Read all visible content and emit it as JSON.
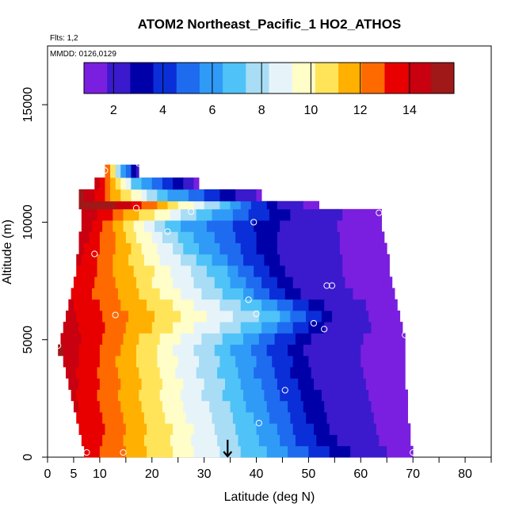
{
  "chart_data": {
    "type": "heatmap",
    "title": "ATOM2 Northeast_Pacific_1 HO2_ATHOS",
    "flights_label": "Flts: 1,2",
    "dates_label": "MMDD: 0126,0129",
    "xlabel": "Latitude (deg N)",
    "ylabel": "Altitude (m)",
    "xlim": [
      0,
      85
    ],
    "ylim": [
      0,
      17500
    ],
    "x_ticks": [
      0,
      5,
      10,
      20,
      30,
      40,
      50,
      60,
      70,
      80
    ],
    "y_ticks": [
      0,
      5000,
      10000,
      15000
    ],
    "grid": false,
    "colorbar": {
      "position": "top",
      "range": [
        0.8,
        15.8
      ],
      "ticks": [
        2,
        4,
        6,
        8,
        10,
        12,
        14
      ],
      "colors": [
        "#7A1FE0",
        "#3A1ACC",
        "#0000A8",
        "#0A2FD8",
        "#1E6BF0",
        "#2F9BF7",
        "#4FC3F7",
        "#A8DDF5",
        "#E6F4FA",
        "#FFFDC8",
        "#FFE45A",
        "#FFB000",
        "#FF6A00",
        "#E80000",
        "#C80010",
        "#A01818"
      ]
    },
    "marker_latitude": 34.5,
    "x_bin_width": 1,
    "layers": [
      {
        "y0": 0,
        "y1": 480,
        "lat_start": 7.0,
        "lat_end": 70.0,
        "peak_lat": 7.0,
        "peak_val": 13.6,
        "fade_lat": 40.0,
        "low_lat": 60.0
      },
      {
        "y0": 480,
        "y1": 960,
        "lat_start": 6.5,
        "lat_end": 69.5,
        "peak_lat": 6.5,
        "peak_val": 13.8,
        "fade_lat": 39.0,
        "low_lat": 57.0
      },
      {
        "y0": 960,
        "y1": 1440,
        "lat_start": 6.0,
        "lat_end": 69.5,
        "peak_lat": 6.0,
        "peak_val": 14.0,
        "fade_lat": 39.0,
        "low_lat": 56.0
      },
      {
        "y0": 1440,
        "y1": 1920,
        "lat_start": 5.5,
        "lat_end": 69.0,
        "peak_lat": 5.5,
        "peak_val": 14.0,
        "fade_lat": 38.0,
        "low_lat": 55.0
      },
      {
        "y0": 1920,
        "y1": 2400,
        "lat_start": 5.0,
        "lat_end": 69.0,
        "peak_lat": 5.0,
        "peak_val": 14.2,
        "fade_lat": 37.0,
        "low_lat": 55.0
      },
      {
        "y0": 2400,
        "y1": 2880,
        "lat_start": 4.5,
        "lat_end": 69.0,
        "peak_lat": 4.5,
        "peak_val": 14.2,
        "fade_lat": 36.0,
        "low_lat": 54.0
      },
      {
        "y0": 2880,
        "y1": 3360,
        "lat_start": 4.0,
        "lat_end": 68.5,
        "peak_lat": 4.0,
        "peak_val": 14.4,
        "fade_lat": 36.0,
        "low_lat": 53.0
      },
      {
        "y0": 3360,
        "y1": 3840,
        "lat_start": 3.5,
        "lat_end": 68.5,
        "peak_lat": 3.5,
        "peak_val": 14.4,
        "fade_lat": 35.0,
        "low_lat": 52.0
      },
      {
        "y0": 3840,
        "y1": 4320,
        "lat_start": 3.0,
        "lat_end": 68.5,
        "peak_lat": 3.0,
        "peak_val": 14.6,
        "fade_lat": 35.0,
        "low_lat": 52.0
      },
      {
        "y0": 4320,
        "y1": 4800,
        "lat_start": 2.0,
        "lat_end": 68.5,
        "peak_lat": 2.0,
        "peak_val": 15.0,
        "fade_lat": 34.0,
        "low_lat": 51.0
      },
      {
        "y0": 4800,
        "y1": 5280,
        "lat_start": 2.5,
        "lat_end": 68.5,
        "peak_lat": 2.5,
        "peak_val": 14.8,
        "fade_lat": 36.0,
        "low_lat": 52.0
      },
      {
        "y0": 5280,
        "y1": 5760,
        "lat_start": 3.0,
        "lat_end": 68.0,
        "peak_lat": 3.0,
        "peak_val": 14.6,
        "fade_lat": 40.0,
        "low_lat": 55.0
      },
      {
        "y0": 5760,
        "y1": 6240,
        "lat_start": 3.5,
        "lat_end": 67.5,
        "peak_lat": 3.5,
        "peak_val": 14.4,
        "fade_lat": 43.0,
        "low_lat": 56.0
      },
      {
        "y0": 6240,
        "y1": 6720,
        "lat_start": 4.0,
        "lat_end": 67.0,
        "peak_lat": 4.0,
        "peak_val": 14.2,
        "fade_lat": 40.0,
        "low_lat": 54.0
      },
      {
        "y0": 6720,
        "y1": 7200,
        "lat_start": 4.5,
        "lat_end": 66.5,
        "peak_lat": 4.5,
        "peak_val": 14.0,
        "fade_lat": 36.0,
        "low_lat": 50.0
      },
      {
        "y0": 7200,
        "y1": 7680,
        "lat_start": 5.0,
        "lat_end": 66.0,
        "peak_lat": 5.0,
        "peak_val": 14.0,
        "fade_lat": 34.0,
        "low_lat": 48.0
      },
      {
        "y0": 7680,
        "y1": 8160,
        "lat_start": 5.5,
        "lat_end": 65.5,
        "peak_lat": 5.5,
        "peak_val": 14.0,
        "fade_lat": 33.0,
        "low_lat": 47.0
      },
      {
        "y0": 8160,
        "y1": 8640,
        "lat_start": 5.5,
        "lat_end": 65.5,
        "peak_lat": 5.5,
        "peak_val": 14.2,
        "fade_lat": 30.0,
        "low_lat": 46.0
      },
      {
        "y0": 8640,
        "y1": 9120,
        "lat_start": 6.0,
        "lat_end": 65.0,
        "peak_lat": 6.0,
        "peak_val": 14.4,
        "fade_lat": 28.0,
        "low_lat": 46.0
      },
      {
        "y0": 9120,
        "y1": 9600,
        "lat_start": 6.0,
        "lat_end": 64.5,
        "peak_lat": 6.0,
        "peak_val": 14.6,
        "fade_lat": 26.0,
        "low_lat": 46.0
      },
      {
        "y0": 9600,
        "y1": 10080,
        "lat_start": 6.5,
        "lat_end": 64.0,
        "peak_lat": 6.5,
        "peak_val": 14.8,
        "fade_lat": 24.0,
        "low_lat": 47.0
      },
      {
        "y0": 10080,
        "y1": 10560,
        "lat_start": 6.5,
        "lat_end": 64.0,
        "peak_lat": 6.5,
        "peak_val": 15.0,
        "fade_lat": 30.0,
        "low_lat": 48.0
      },
      {
        "y0": 10560,
        "y1": 10900,
        "lat_start": 6.0,
        "lat_end": 52.0,
        "peak_lat": 12.0,
        "peak_val": 15.4,
        "fade_lat": 34.0,
        "low_lat": 45.0
      },
      {
        "y0": 10900,
        "y1": 11400,
        "lat_start": 6.0,
        "lat_end": 41.0,
        "peak_lat": 6.0,
        "peak_val": 15.6,
        "fade_lat": 22.0,
        "low_lat": 38.0
      },
      {
        "y0": 11400,
        "y1": 11900,
        "lat_start": 9.0,
        "lat_end": 29.0,
        "peak_lat": 9.0,
        "peak_val": 15.0,
        "fade_lat": 17.0,
        "low_lat": 27.0
      },
      {
        "y0": 11900,
        "y1": 12450,
        "lat_start": 11.0,
        "lat_end": 17.5,
        "peak_lat": 11.0,
        "peak_val": 14.0,
        "fade_lat": 14.0,
        "low_lat": 17.5
      }
    ],
    "sample_points": [
      {
        "lat": 2.0,
        "alt": 4750
      },
      {
        "lat": 5.0,
        "alt": 11300
      },
      {
        "lat": 7.5,
        "alt": 200
      },
      {
        "lat": 9.0,
        "alt": 8650
      },
      {
        "lat": 11.0,
        "alt": 12200
      },
      {
        "lat": 13.0,
        "alt": 6050
      },
      {
        "lat": 14.5,
        "alt": 200
      },
      {
        "lat": 17.0,
        "alt": 10600
      },
      {
        "lat": 17.5,
        "alt": 12500
      },
      {
        "lat": 23.0,
        "alt": 9600
      },
      {
        "lat": 27.5,
        "alt": 10450
      },
      {
        "lat": 38.5,
        "alt": 6700
      },
      {
        "lat": 39.5,
        "alt": 10000
      },
      {
        "lat": 40.0,
        "alt": 6100
      },
      {
        "lat": 40.5,
        "alt": 1450
      },
      {
        "lat": 45.5,
        "alt": 2850
      },
      {
        "lat": 51.0,
        "alt": 5700
      },
      {
        "lat": 53.0,
        "alt": 5450
      },
      {
        "lat": 53.5,
        "alt": 7300
      },
      {
        "lat": 54.5,
        "alt": 7300
      },
      {
        "lat": 63.5,
        "alt": 10400
      },
      {
        "lat": 68.5,
        "alt": 5200
      },
      {
        "lat": 70.0,
        "alt": 200
      }
    ]
  }
}
